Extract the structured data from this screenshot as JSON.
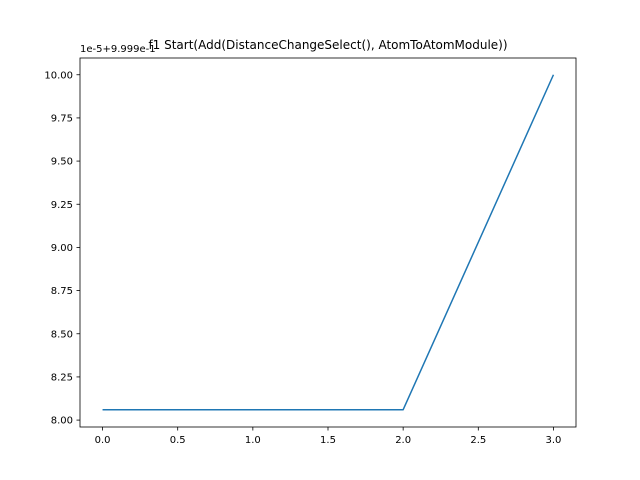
{
  "chart_data": {
    "type": "line",
    "title": "f1 Start(Add(DistanceChangeSelect(), AtomToAtomModule))",
    "offset_label": "1e-5+9.999e-1",
    "xlabel": "",
    "ylabel": "",
    "xlim": [
      -0.15,
      3.15
    ],
    "ylim": [
      7.96,
      10.097
    ],
    "x_ticks": [
      0.0,
      0.5,
      1.0,
      1.5,
      2.0,
      2.5,
      3.0
    ],
    "x_tick_labels": [
      "0.0",
      "0.5",
      "1.0",
      "1.5",
      "2.0",
      "2.5",
      "3.0"
    ],
    "y_ticks": [
      8.0,
      8.25,
      8.5,
      8.75,
      9.0,
      9.25,
      9.5,
      9.75,
      10.0
    ],
    "y_tick_labels": [
      "8.00",
      "8.25",
      "8.50",
      "8.75",
      "9.00",
      "9.25",
      "9.50",
      "9.75",
      "10.00"
    ],
    "grid": false,
    "series": [
      {
        "x": [
          0,
          1,
          2,
          3
        ],
        "values": [
          8.06,
          8.06,
          8.06,
          10.0
        ],
        "color": "#1f77b4"
      }
    ]
  }
}
